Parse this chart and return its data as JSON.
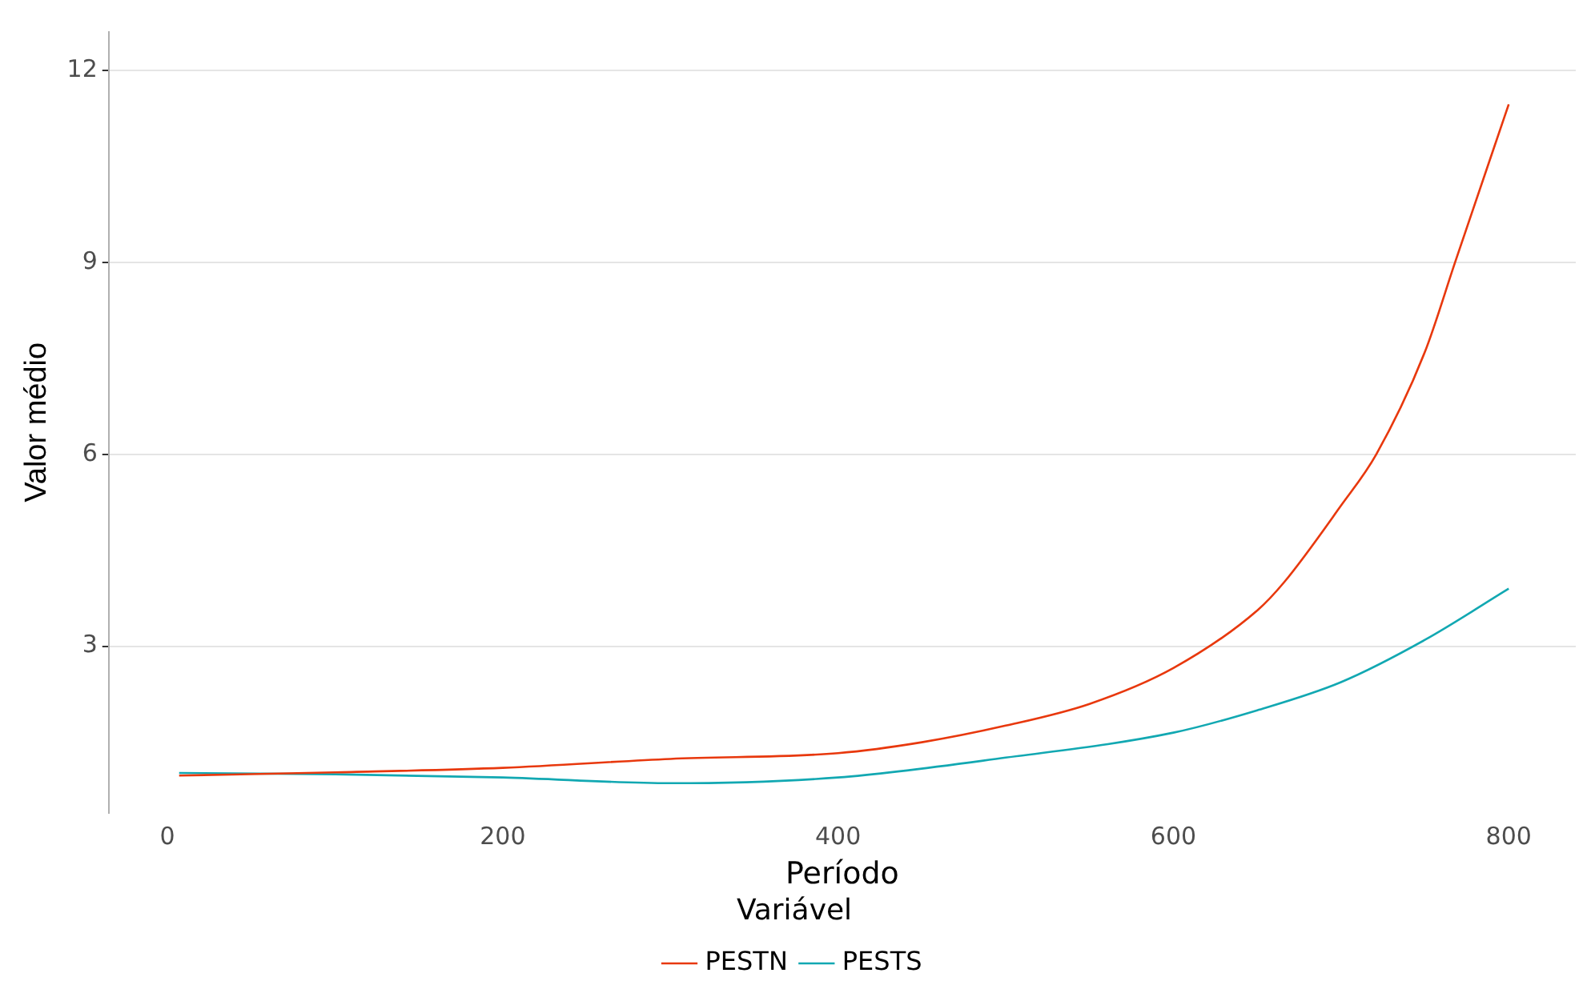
{
  "chart_data": {
    "type": "line",
    "xlabel": "Período",
    "ylabel": "Valor médio",
    "legend_title": "Variável",
    "legend": "bottom",
    "grid": "y",
    "marker": "none",
    "line_style": "solid",
    "xlim": [
      -35,
      840
    ],
    "xticks": [
      0,
      200,
      400,
      600,
      800
    ],
    "ylim": [
      0.4,
      12.6
    ],
    "yticks": [
      3,
      6,
      9,
      12
    ],
    "series": [
      {
        "name": "PESTN",
        "color": "#e8380d",
        "x": [
          7,
          100,
          200,
          300,
          400,
          450,
          500,
          550,
          600,
          650,
          666,
          700,
          721,
          750,
          768,
          800
        ],
        "values": [
          0.98,
          1.03,
          1.1,
          1.24,
          1.33,
          1.5,
          1.76,
          2.1,
          2.66,
          3.56,
          4.0,
          5.2,
          6.0,
          7.6,
          9.0,
          11.47
        ]
      },
      {
        "name": "PESTS",
        "color": "#12a8b2",
        "x": [
          7,
          100,
          200,
          300,
          400,
          500,
          600,
          650,
          700,
          750,
          800
        ],
        "values": [
          1.02,
          1.0,
          0.95,
          0.86,
          0.95,
          1.26,
          1.65,
          2.0,
          2.44,
          3.1,
          3.9
        ]
      }
    ]
  }
}
